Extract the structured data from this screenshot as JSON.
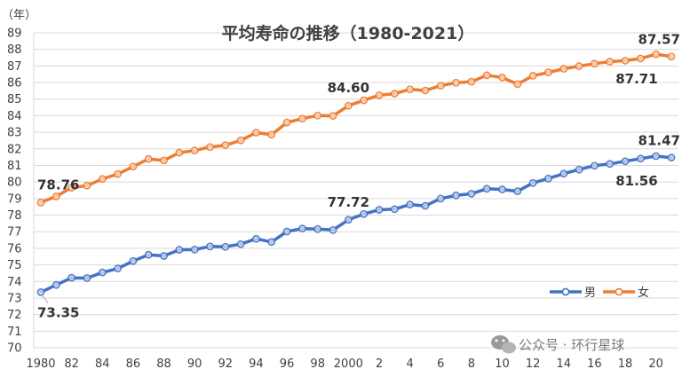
{
  "chart_data": {
    "type": "line",
    "title": "平均寿命の推移（1980-2021）",
    "y_unit": "（年）",
    "ylim": [
      70,
      89
    ],
    "y_ticks": [
      70,
      71,
      72,
      73,
      74,
      75,
      76,
      77,
      78,
      79,
      80,
      81,
      82,
      83,
      84,
      85,
      86,
      87,
      88,
      89
    ],
    "x": [
      1980,
      1981,
      1982,
      1983,
      1984,
      1985,
      1986,
      1987,
      1988,
      1989,
      1990,
      1991,
      1992,
      1993,
      1994,
      1995,
      1996,
      1997,
      1998,
      1999,
      2000,
      2001,
      2002,
      2003,
      2004,
      2005,
      2006,
      2007,
      2008,
      2009,
      2010,
      2011,
      2012,
      2013,
      2014,
      2015,
      2016,
      2017,
      2018,
      2019,
      2020,
      2021
    ],
    "x_tick_labels": [
      "1980",
      "82",
      "84",
      "86",
      "88",
      "90",
      "92",
      "94",
      "96",
      "98",
      "2000",
      "2",
      "4",
      "6",
      "8",
      "10",
      "12",
      "14",
      "16",
      "18",
      "20"
    ],
    "grid": "horizontal",
    "legend_position": "bottom-right",
    "series": [
      {
        "name": "男",
        "color": "#4472C4",
        "values": [
          73.35,
          73.79,
          74.22,
          74.2,
          74.54,
          74.78,
          75.23,
          75.61,
          75.54,
          75.91,
          75.92,
          76.11,
          76.09,
          76.25,
          76.57,
          76.38,
          77.01,
          77.19,
          77.16,
          77.1,
          77.72,
          78.07,
          78.32,
          78.36,
          78.64,
          78.56,
          79.0,
          79.19,
          79.29,
          79.59,
          79.55,
          79.44,
          79.94,
          80.21,
          80.5,
          80.75,
          80.98,
          81.09,
          81.25,
          81.41,
          81.56,
          81.47
        ]
      },
      {
        "name": "女",
        "color": "#ED7D31",
        "values": [
          78.76,
          79.13,
          79.66,
          79.78,
          80.18,
          80.48,
          80.93,
          81.39,
          81.3,
          81.77,
          81.9,
          82.11,
          82.22,
          82.51,
          82.98,
          82.85,
          83.59,
          83.82,
          84.01,
          83.99,
          84.6,
          84.93,
          85.23,
          85.33,
          85.59,
          85.52,
          85.81,
          85.99,
          86.05,
          86.44,
          86.3,
          85.9,
          86.41,
          86.61,
          86.83,
          86.99,
          87.14,
          87.26,
          87.32,
          87.45,
          87.71,
          87.57
        ]
      }
    ],
    "annotations": [
      {
        "text": "73.35",
        "series": 0,
        "index": 0,
        "pos": "below"
      },
      {
        "text": "78.76",
        "series": 1,
        "index": 0,
        "pos": "above"
      },
      {
        "text": "77.72",
        "series": 0,
        "index": 20,
        "pos": "above"
      },
      {
        "text": "84.60",
        "series": 1,
        "index": 20,
        "pos": "above"
      },
      {
        "text": "81.47",
        "series": 0,
        "index": 41,
        "pos": "above"
      },
      {
        "text": "81.56",
        "series": 0,
        "index": 40,
        "pos": "below"
      },
      {
        "text": "87.57",
        "series": 1,
        "index": 41,
        "pos": "above"
      },
      {
        "text": "87.71",
        "series": 1,
        "index": 40,
        "pos": "below"
      }
    ]
  },
  "watermark": {
    "icon": "wechat-icon",
    "text": "公众号 · 环行星球"
  }
}
